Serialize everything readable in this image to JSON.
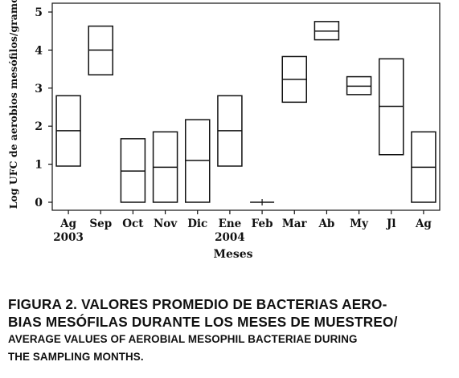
{
  "chart_data": {
    "type": "box",
    "ylabel": "Log UFC de aerobios mesófilos/gramo",
    "xlabel": "Meses",
    "ylim": [
      0,
      5
    ],
    "yticks": [
      0,
      1,
      2,
      3,
      4,
      5
    ],
    "categories": [
      {
        "label": "Ag",
        "sub": "2003",
        "low": 0.95,
        "mid": 1.88,
        "high": 2.8
      },
      {
        "label": "Sep",
        "sub": "",
        "low": 3.35,
        "mid": 4.0,
        "high": 4.63
      },
      {
        "label": "Oct",
        "sub": "",
        "low": 0.0,
        "mid": 0.82,
        "high": 1.67
      },
      {
        "label": "Nov",
        "sub": "",
        "low": 0.0,
        "mid": 0.92,
        "high": 1.85
      },
      {
        "label": "Dic",
        "sub": "",
        "low": 0.0,
        "mid": 1.1,
        "high": 2.17
      },
      {
        "label": "Ene",
        "sub": "2004",
        "low": 0.95,
        "mid": 1.88,
        "high": 2.8
      },
      {
        "label": "Feb",
        "sub": "",
        "low": 0.0,
        "mid": 0.0,
        "high": 0.0
      },
      {
        "label": "Mar",
        "sub": "",
        "low": 2.63,
        "mid": 3.23,
        "high": 3.83
      },
      {
        "label": "Ab",
        "sub": "",
        "low": 4.27,
        "mid": 4.5,
        "high": 4.75
      },
      {
        "label": "My",
        "sub": "",
        "low": 2.83,
        "mid": 3.05,
        "high": 3.3
      },
      {
        "label": "Jl",
        "sub": "",
        "low": 1.25,
        "mid": 2.52,
        "high": 3.77
      },
      {
        "label": "Ag",
        "sub": "",
        "low": 0.0,
        "mid": 0.92,
        "high": 1.85
      }
    ]
  },
  "caption": {
    "line1": "FIGURA 2. VALORES PROMEDIO DE BACTERIAS AERO-",
    "line2": "BIAS MESÓFILAS DURANTE LOS MESES DE MUESTREO/",
    "line3": "AVERAGE VALUES OF AEROBIAL MESOPHIL BACTERIAE DURING",
    "line4": "THE SAMPLING MONTHS."
  }
}
